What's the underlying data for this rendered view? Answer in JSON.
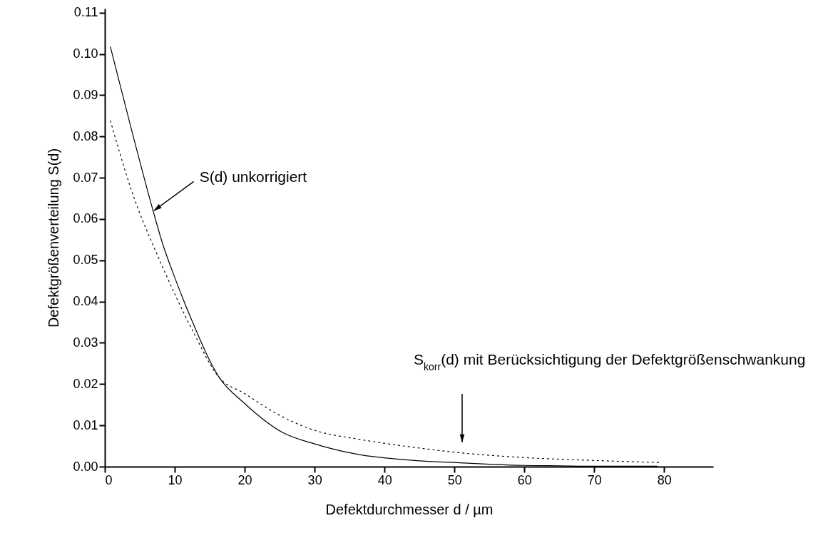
{
  "chart_data": {
    "type": "line",
    "xlabel": "Defektdurchmesser d / µm",
    "ylabel": "Defektgrößenverteilung S(d)",
    "xlim": [
      0,
      87
    ],
    "xticks": [
      0,
      10,
      20,
      30,
      40,
      50,
      60,
      70,
      80
    ],
    "ylim": [
      0,
      0.111
    ],
    "yticks": [
      {
        "value": 0,
        "label": "0.00"
      },
      {
        "value": 0.01,
        "label": "0.01"
      },
      {
        "value": 0.02,
        "label": "0.02"
      },
      {
        "value": 0.03,
        "label": "0.03"
      },
      {
        "value": 0.04,
        "label": "0.04"
      },
      {
        "value": 0.05,
        "label": "0.05"
      },
      {
        "value": 0.06,
        "label": "0.06"
      },
      {
        "value": 0.07,
        "label": "0.07"
      },
      {
        "value": 0.08,
        "label": "0.08"
      },
      {
        "value": 0.09,
        "label": "0.09"
      },
      {
        "value": 0.1,
        "label": "0.10"
      },
      {
        "value": 0.11,
        "label": "0.11"
      }
    ],
    "grid": false,
    "marker": "none",
    "series": [
      {
        "color": "#000000",
        "line_style": "solid",
        "x": [
          0.8,
          3.7,
          6.9,
          8.1,
          10.3,
          12.4,
          16.4,
          19.8,
          25.5,
          30,
          36.1,
          40.2,
          45,
          51.2,
          55,
          59.8,
          65,
          70,
          79
        ],
        "values": [
          0.1017,
          0.0824,
          0.062,
          0.0549,
          0.0445,
          0.0356,
          0.0215,
          0.0156,
          0.0082,
          0.0055,
          0.003,
          0.0021,
          0.0014,
          0.0009,
          0.0006,
          0.0003,
          0.0002,
          0.0001,
          0.0001
        ]
      },
      {
        "color": "#000000",
        "line_style": "dotted",
        "x": [
          0.8,
          3.7,
          8.1,
          12.4,
          16.4,
          19.8,
          25.5,
          30,
          36.1,
          40.2,
          45,
          51.2,
          60,
          70,
          79.2
        ],
        "values": [
          0.0838,
          0.0675,
          0.049,
          0.0335,
          0.0215,
          0.0179,
          0.012,
          0.0088,
          0.0067,
          0.0056,
          0.0045,
          0.0033,
          0.0022,
          0.0015,
          0.001
        ]
      }
    ],
    "annotations": [
      {
        "text": "S(d) unkorrigiert",
        "x": 7,
        "y": 0.062
      },
      "S$_{korr}$(d) mit Berücksichtigung der Defektgrößenschwankung"
    ]
  }
}
